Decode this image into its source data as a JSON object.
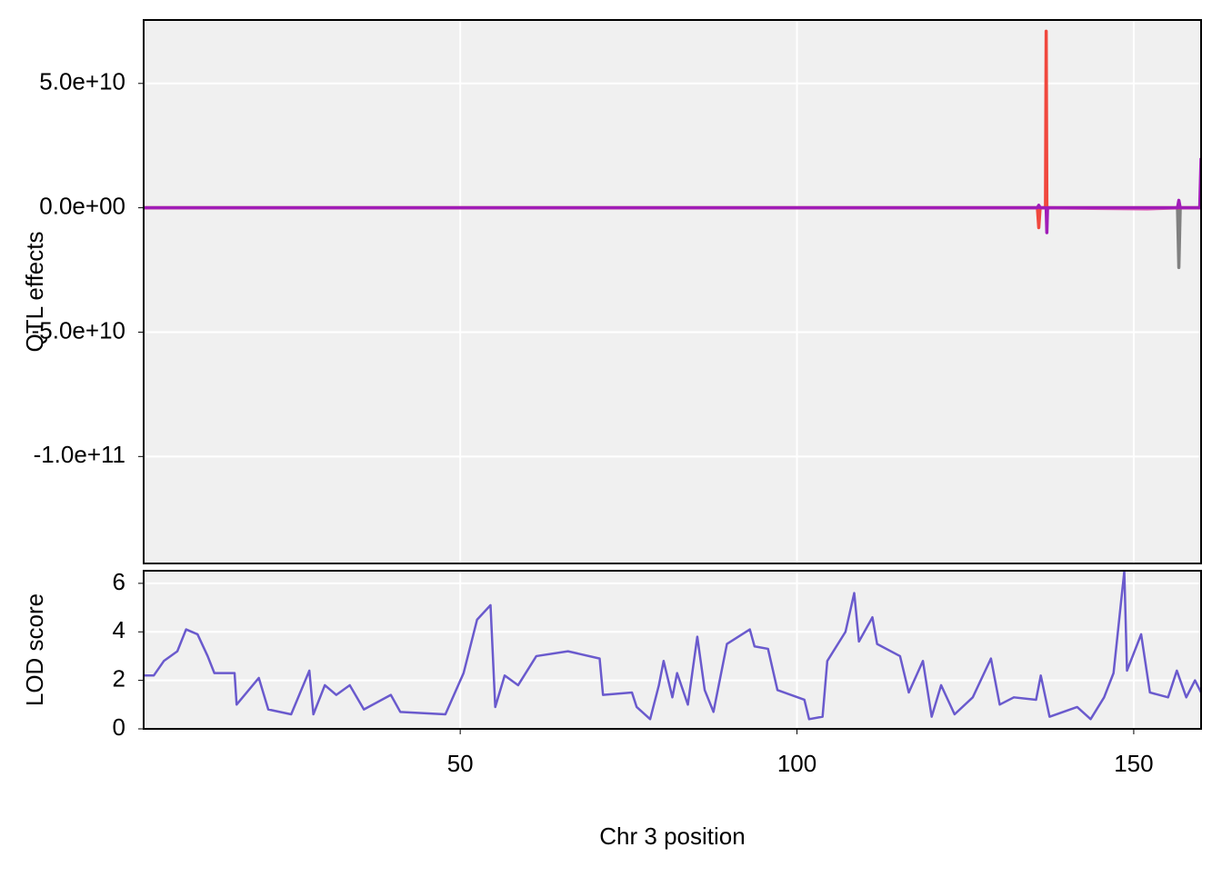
{
  "chart_data": [
    {
      "type": "line",
      "ylabel": "QTL effects",
      "x": [
        3,
        135.7,
        135.9,
        136.1,
        136.9,
        137.0,
        137.1,
        137.2,
        152,
        156.5,
        156.7,
        156.9,
        159.7,
        159.8,
        160
      ],
      "series": [
        {
          "color": "#e377c2",
          "values": [
            0,
            0,
            0,
            0,
            0,
            0,
            0,
            0,
            -500000000,
            0,
            0,
            0,
            0,
            0,
            0
          ]
        },
        {
          "color": "#808080",
          "values": [
            0,
            0,
            0,
            0,
            0,
            0,
            0,
            0,
            0,
            0,
            -24000000000,
            0,
            0,
            0,
            0
          ]
        },
        {
          "color": "#f0483e",
          "values": [
            0,
            0,
            -8000000000,
            0,
            0,
            71000000000,
            0,
            0,
            0,
            0,
            0,
            0,
            0,
            0,
            0
          ]
        },
        {
          "color": "#a01cb8",
          "values": [
            0,
            0,
            1000000000,
            0,
            0,
            0,
            -10000000000,
            0,
            0,
            0,
            3000000000,
            0,
            0,
            0,
            20000000000
          ]
        }
      ],
      "xlim": [
        3,
        160
      ],
      "xticks": [
        50,
        100,
        150
      ],
      "ylim": [
        -143000000000,
        75500000000
      ],
      "yticks": [
        {
          "value": -100000000000,
          "label": "-1.0e+11"
        },
        {
          "value": -50000000000,
          "label": "-5.0e+10"
        },
        {
          "value": 0,
          "label": "0.0e+00"
        },
        {
          "value": 50000000000,
          "label": "5.0e+10"
        }
      ],
      "grid": true
    },
    {
      "type": "line",
      "ylabel": "LOD score",
      "xlabel": "Chr 3 position",
      "x": [
        3,
        4.5,
        6,
        8,
        9.3,
        11,
        12.5,
        13.5,
        16.5,
        16.8,
        20.1,
        21.5,
        24.9,
        27.6,
        28.2,
        29.9,
        31.6,
        33.6,
        35.7,
        39.7,
        41.1,
        47.8,
        50.5,
        52.5,
        54.5,
        55.2,
        56.6,
        58.6,
        61.3,
        66.0,
        70.7,
        71.2,
        75.5,
        76.2,
        78.2,
        79.5,
        80.2,
        81.5,
        82.2,
        83.8,
        85.2,
        86.3,
        87.6,
        89.6,
        93.0,
        93.7,
        95.7,
        97.1,
        101.1,
        101.8,
        103.8,
        104.5,
        107.2,
        108.5,
        109.2,
        111.2,
        111.9,
        115.3,
        116.6,
        118.7,
        120.0,
        121.4,
        123.4,
        126.1,
        128.8,
        130.1,
        132.2,
        135.5,
        136.2,
        137.5,
        141.6,
        143.6,
        145.6,
        147.0,
        148.6,
        149.0,
        151.1,
        152.4,
        155.1,
        156.4,
        157.8,
        159.1,
        160
      ],
      "series": [
        {
          "color": "#6a5acd",
          "values": [
            2.2,
            2.2,
            2.8,
            3.2,
            4.1,
            3.9,
            3.0,
            2.3,
            2.3,
            1.0,
            2.1,
            0.8,
            0.6,
            2.4,
            0.6,
            1.8,
            1.4,
            1.8,
            0.8,
            1.4,
            0.7,
            0.6,
            2.3,
            4.5,
            5.1,
            0.9,
            2.2,
            1.8,
            3.0,
            3.2,
            2.9,
            1.4,
            1.5,
            0.9,
            0.4,
            1.8,
            2.8,
            1.3,
            2.3,
            1.0,
            3.8,
            1.6,
            0.7,
            3.5,
            4.1,
            3.4,
            3.3,
            1.6,
            1.2,
            0.4,
            0.5,
            2.8,
            4.0,
            5.6,
            3.6,
            4.6,
            3.5,
            3.0,
            1.5,
            2.8,
            0.5,
            1.8,
            0.6,
            1.3,
            2.9,
            1.0,
            1.3,
            1.2,
            2.2,
            0.5,
            0.9,
            0.4,
            1.3,
            2.3,
            6.5,
            2.4,
            3.9,
            1.5,
            1.3,
            2.4,
            1.3,
            2.0,
            1.5
          ]
        }
      ],
      "xlim": [
        3,
        160
      ],
      "xticks": [
        50,
        100,
        150
      ],
      "ylim": [
        0,
        6.52
      ],
      "yticks": [
        0,
        2,
        4,
        6
      ],
      "grid": true
    }
  ]
}
